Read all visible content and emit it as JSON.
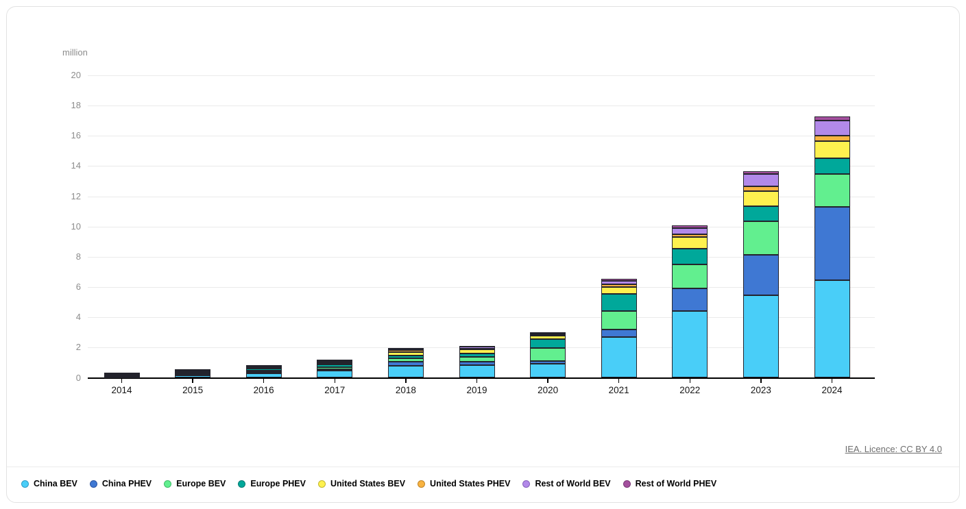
{
  "footer": {
    "licence_text": "IEA. Licence: CC BY 4.0"
  },
  "chart_data": {
    "type": "bar",
    "stacked": true,
    "unit_label": "million",
    "categories": [
      "2014",
      "2015",
      "2016",
      "2017",
      "2018",
      "2019",
      "2020",
      "2021",
      "2022",
      "2023",
      "2024"
    ],
    "series": [
      {
        "name": "China BEV",
        "color": "#49cef8",
        "ring": "#2f9bc6",
        "values": [
          0.05,
          0.15,
          0.3,
          0.47,
          0.8,
          0.85,
          0.94,
          2.68,
          4.43,
          5.44,
          6.45
        ]
      },
      {
        "name": "China PHEV",
        "color": "#3f78d3",
        "ring": "#2c55a3",
        "values": [
          0.02,
          0.06,
          0.08,
          0.11,
          0.27,
          0.22,
          0.18,
          0.5,
          1.5,
          2.67,
          4.87
        ]
      },
      {
        "name": "Europe BEV",
        "color": "#62ef8f",
        "ring": "#3fbc69",
        "values": [
          0.06,
          0.09,
          0.09,
          0.14,
          0.2,
          0.33,
          0.84,
          1.24,
          1.58,
          2.24,
          2.16
        ]
      },
      {
        "name": "Europe PHEV",
        "color": "#00a89a",
        "ring": "#057a71",
        "values": [
          0.04,
          0.1,
          0.12,
          0.15,
          0.19,
          0.22,
          0.59,
          1.13,
          1.03,
          0.98,
          1.04
        ]
      },
      {
        "name": "United States BEV",
        "color": "#fef14f",
        "ring": "#c2b62f",
        "values": [
          0.06,
          0.07,
          0.09,
          0.1,
          0.24,
          0.24,
          0.24,
          0.44,
          0.75,
          1.01,
          1.13
        ]
      },
      {
        "name": "United States PHEV",
        "color": "#f8b341",
        "ring": "#bf8428",
        "values": [
          0.06,
          0.04,
          0.08,
          0.09,
          0.12,
          0.08,
          0.07,
          0.18,
          0.2,
          0.3,
          0.35
        ]
      },
      {
        "name": "Rest of World BEV",
        "color": "#b289e9",
        "ring": "#8662ba",
        "values": [
          0.03,
          0.03,
          0.04,
          0.07,
          0.1,
          0.1,
          0.1,
          0.24,
          0.43,
          0.84,
          1.01
        ]
      },
      {
        "name": "Rest of World PHEV",
        "color": "#a4509e",
        "ring": "#7a3976",
        "values": [
          0.01,
          0.01,
          0.02,
          0.06,
          0.06,
          0.06,
          0.06,
          0.14,
          0.17,
          0.19,
          0.28
        ]
      }
    ],
    "ylim": [
      0,
      20
    ],
    "ytick_step": 2,
    "grid": true,
    "legend_position": "bottom"
  }
}
